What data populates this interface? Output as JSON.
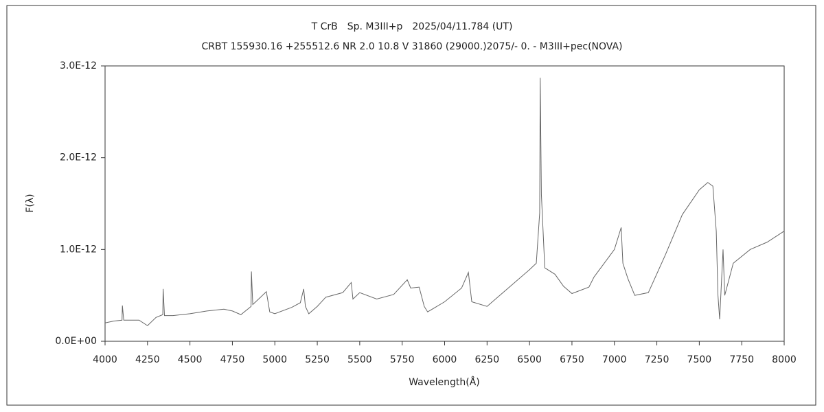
{
  "chart_data": {
    "type": "line",
    "title": "T CrB　Sp. M3III+p　2025/04/11.784 (UT)",
    "subtitle": "CRBT 155930.16 +255512.6 NR 2.0 10.8 V 31860 (29000.)2075/-  0. - M3III+pec(NOVA)",
    "xlabel": "Wavelength(Å)",
    "ylabel": "F(λ)",
    "xlim": [
      4000,
      8000
    ],
    "xticks": [
      4000,
      4250,
      4500,
      4750,
      5000,
      5250,
      5500,
      5750,
      6000,
      6250,
      6500,
      6750,
      7000,
      7250,
      7500,
      7750,
      8000
    ],
    "ylim": [
      0,
      3e-12
    ],
    "yticks": [
      {
        "value": 0,
        "label": "0.0E+00"
      },
      {
        "value": 1e-12,
        "label": "1.0E-12"
      },
      {
        "value": 2e-12,
        "label": "2.0E-12"
      },
      {
        "value": 3e-12,
        "label": "3.0E-12"
      }
    ],
    "grid": false,
    "series": [
      {
        "color": "#666666",
        "x": [
          4000,
          4050,
          4100,
          4102,
          4110,
          4200,
          4250,
          4300,
          4340,
          4342,
          4350,
          4400,
          4500,
          4600,
          4700,
          4750,
          4800,
          4860,
          4862,
          4870,
          4950,
          4970,
          5000,
          5100,
          5150,
          5170,
          5180,
          5200,
          5250,
          5300,
          5400,
          5450,
          5460,
          5500,
          5600,
          5700,
          5780,
          5800,
          5850,
          5880,
          5900,
          6000,
          6100,
          6140,
          6160,
          6250,
          6300,
          6400,
          6500,
          6540,
          6560,
          6563,
          6570,
          6590,
          6650,
          6700,
          6750,
          6850,
          6880,
          7000,
          7040,
          7050,
          7080,
          7120,
          7200,
          7300,
          7400,
          7500,
          7550,
          7580,
          7600,
          7610,
          7620,
          7640,
          7650,
          7700,
          7800,
          7900,
          8000
        ],
        "values": [
          2e-13,
          2.2e-13,
          2.3e-13,
          3.9e-13,
          2.3e-13,
          2.3e-13,
          1.7e-13,
          2.6e-13,
          2.9e-13,
          5.7e-13,
          2.8e-13,
          2.8e-13,
          3e-13,
          3.3e-13,
          3.5e-13,
          3.3e-13,
          2.9e-13,
          3.8e-13,
          7.6e-13,
          4e-13,
          5.4e-13,
          3.2e-13,
          3e-13,
          3.7e-13,
          4.2e-13,
          5.7e-13,
          3.8e-13,
          3e-13,
          3.8e-13,
          4.8e-13,
          5.3e-13,
          6.4e-13,
          4.6e-13,
          5.3e-13,
          4.6e-13,
          5.1e-13,
          6.7e-13,
          5.8e-13,
          5.9e-13,
          3.8e-13,
          3.2e-13,
          4.3e-13,
          5.8e-13,
          7.5e-13,
          4.3e-13,
          3.8e-13,
          4.6e-13,
          6.2e-13,
          7.8e-13,
          8.5e-13,
          1.4e-12,
          2.87e-12,
          1.6e-12,
          8e-13,
          7.3e-13,
          6e-13,
          5.2e-13,
          5.9e-13,
          7e-13,
          1e-12,
          1.24e-12,
          8.5e-13,
          6.8e-13,
          5e-13,
          5.3e-13,
          9.4e-13,
          1.38e-12,
          1.65e-12,
          1.73e-12,
          1.69e-12,
          1.2e-12,
          5e-13,
          2.4e-13,
          1e-12,
          5e-13,
          8.5e-13,
          1e-12,
          1.08e-12,
          1.2e-12
        ]
      }
    ]
  }
}
